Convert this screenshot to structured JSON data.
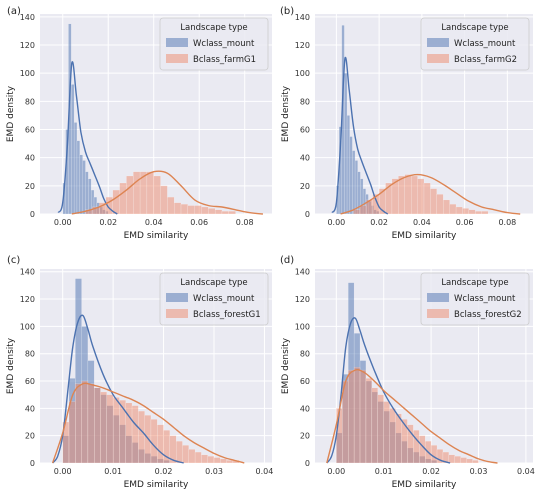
{
  "figure": {
    "panels": [
      "(a)",
      "(b)",
      "(c)",
      "(d)"
    ]
  },
  "colors": {
    "background": "#eaeaf2",
    "grid": "#ffffff",
    "blue_fill": "#4c72b0",
    "orange_fill": "#ee8a6b",
    "blue_line": "#4c72b0",
    "orange_line": "#dd8452"
  },
  "chart_data": [
    {
      "type": "histogram with KDE",
      "panel_label": "(a)",
      "xlabel": "EMD similarity",
      "ylabel": "EMD density",
      "xlim": [
        -0.01,
        0.092
      ],
      "ylim": [
        0,
        142
      ],
      "xticks": [
        0.0,
        0.02,
        0.04,
        0.06,
        0.08
      ],
      "xtick_labels": [
        "0.00",
        "0.02",
        "0.04",
        "0.06",
        "0.08"
      ],
      "yticks": [
        0,
        20,
        40,
        60,
        80,
        100,
        120,
        140
      ],
      "grid": true,
      "legend": {
        "title": "Landscape type",
        "placement": "top-right"
      },
      "series": [
        {
          "name": "Wclass_mount",
          "color": "blue",
          "bin_start": 0.0,
          "bin_width": 0.00125,
          "hist": [
            22,
            60,
            135,
            92,
            65,
            52,
            42,
            38,
            30,
            25,
            17,
            12,
            8,
            5,
            3,
            2
          ],
          "kde_x": [
            -0.002,
            0.0,
            0.002,
            0.004,
            0.006,
            0.008,
            0.01,
            0.012,
            0.014,
            0.016,
            0.018,
            0.02,
            0.022,
            0.024
          ],
          "kde_y": [
            1,
            8,
            48,
            107,
            84,
            58,
            44,
            36,
            28,
            20,
            11,
            5,
            2,
            0
          ]
        },
        {
          "name": "Bclass_farmG1",
          "color": "orange",
          "bin_start": 0.01,
          "bin_width": 0.003,
          "hist": [
            3,
            5,
            8,
            12,
            17,
            22,
            27,
            30,
            30,
            30,
            27,
            20,
            12,
            8,
            7,
            6,
            6,
            5,
            4,
            3,
            2,
            2
          ],
          "kde_x": [
            0.004,
            0.01,
            0.016,
            0.022,
            0.028,
            0.034,
            0.04,
            0.046,
            0.052,
            0.058,
            0.064,
            0.07,
            0.076,
            0.082,
            0.088
          ],
          "kde_y": [
            0,
            2,
            5,
            10,
            17,
            25,
            30,
            29,
            20,
            10,
            6,
            5,
            3,
            1,
            0
          ]
        }
      ]
    },
    {
      "type": "histogram with KDE",
      "panel_label": "(b)",
      "xlabel": "EMD similarity",
      "ylabel": "EMD density",
      "xlim": [
        -0.01,
        0.092
      ],
      "ylim": [
        0,
        142
      ],
      "xticks": [
        0.0,
        0.02,
        0.04,
        0.06,
        0.08
      ],
      "xtick_labels": [
        "0.00",
        "0.02",
        "0.04",
        "0.06",
        "0.08"
      ],
      "yticks": [
        0,
        20,
        40,
        60,
        80,
        100,
        120,
        140
      ],
      "grid": true,
      "legend": {
        "title": "Landscape type",
        "placement": "top-right"
      },
      "series": [
        {
          "name": "Wclass_mount",
          "color": "blue",
          "bin_start": 0.0,
          "bin_width": 0.00125,
          "hist": [
            20,
            62,
            134,
            100,
            70,
            55,
            45,
            38,
            30,
            25,
            18,
            14,
            9,
            6,
            3,
            2
          ],
          "kde_x": [
            -0.002,
            0.0,
            0.002,
            0.004,
            0.006,
            0.008,
            0.01,
            0.012,
            0.014,
            0.016,
            0.018,
            0.02,
            0.022,
            0.024
          ],
          "kde_y": [
            1,
            8,
            50,
            110,
            88,
            62,
            46,
            37,
            29,
            21,
            12,
            5,
            2,
            0
          ]
        },
        {
          "name": "Bclass_farmG2",
          "color": "orange",
          "bin_start": 0.008,
          "bin_width": 0.003,
          "hist": [
            3,
            6,
            10,
            14,
            18,
            22,
            25,
            27,
            28,
            27,
            25,
            22,
            18,
            14,
            10,
            7,
            5,
            4,
            3,
            2,
            2
          ],
          "kde_x": [
            0.002,
            0.008,
            0.014,
            0.02,
            0.026,
            0.032,
            0.038,
            0.044,
            0.05,
            0.056,
            0.062,
            0.068,
            0.074,
            0.08,
            0.086
          ],
          "kde_y": [
            0,
            3,
            8,
            14,
            21,
            26,
            28,
            26,
            21,
            15,
            9,
            5,
            3,
            1,
            0
          ]
        }
      ]
    },
    {
      "type": "histogram with KDE",
      "panel_label": "(c)",
      "xlabel": "EMD similarity",
      "ylabel": "EMD density",
      "xlim": [
        -0.0045,
        0.0415
      ],
      "ylim": [
        0,
        142
      ],
      "xticks": [
        0.0,
        0.01,
        0.02,
        0.03,
        0.04
      ],
      "xtick_labels": [
        "0.00",
        "0.01",
        "0.02",
        "0.03",
        "0.04"
      ],
      "yticks": [
        0,
        20,
        40,
        60,
        80,
        100,
        120,
        140
      ],
      "grid": true,
      "legend": {
        "title": "Landscape type",
        "placement": "top-right"
      },
      "series": [
        {
          "name": "Wclass_mount",
          "color": "blue",
          "bin_start": 0.0,
          "bin_width": 0.00125,
          "hist": [
            20,
            62,
            135,
            100,
            75,
            55,
            50,
            42,
            35,
            28,
            20,
            15,
            10,
            7,
            5,
            3,
            2
          ],
          "kde_x": [
            -0.002,
            -0.001,
            0.0,
            0.001,
            0.002,
            0.003,
            0.004,
            0.005,
            0.006,
            0.008,
            0.01,
            0.012,
            0.014,
            0.016,
            0.018,
            0.02,
            0.022,
            0.024
          ],
          "kde_y": [
            0,
            5,
            20,
            52,
            85,
            103,
            108,
            98,
            85,
            65,
            50,
            40,
            30,
            22,
            13,
            6,
            2,
            0
          ]
        },
        {
          "name": "Bclass_forestG1",
          "color": "orange",
          "bin_start": 0.0,
          "bin_width": 0.00125,
          "hist": [
            30,
            45,
            58,
            60,
            58,
            55,
            52,
            50,
            48,
            46,
            44,
            42,
            38,
            35,
            32,
            28,
            24,
            20,
            16,
            13,
            10,
            8,
            6,
            5,
            4,
            3,
            2,
            2
          ],
          "kde_x": [
            -0.002,
            0.0,
            0.002,
            0.004,
            0.006,
            0.008,
            0.01,
            0.012,
            0.014,
            0.016,
            0.018,
            0.02,
            0.022,
            0.024,
            0.026,
            0.028,
            0.03,
            0.032,
            0.034,
            0.036
          ],
          "kde_y": [
            0,
            22,
            50,
            58,
            57,
            55,
            52,
            49,
            46,
            42,
            37,
            32,
            26,
            20,
            15,
            11,
            7,
            4,
            2,
            0
          ]
        }
      ]
    },
    {
      "type": "histogram with KDE",
      "panel_label": "(d)",
      "xlabel": "EMD similarity",
      "ylabel": "EMD density",
      "xlim": [
        -0.0045,
        0.0415
      ],
      "ylim": [
        0,
        142
      ],
      "xticks": [
        0.0,
        0.01,
        0.02,
        0.03,
        0.04
      ],
      "xtick_labels": [
        "0.00",
        "0.01",
        "0.02",
        "0.03",
        "0.04"
      ],
      "yticks": [
        0,
        20,
        40,
        60,
        80,
        100,
        120,
        140
      ],
      "grid": true,
      "legend": {
        "title": "Landscape type",
        "placement": "top-right"
      },
      "series": [
        {
          "name": "Wclass_mount",
          "color": "blue",
          "bin_start": 0.0,
          "bin_width": 0.00125,
          "hist": [
            22,
            65,
            132,
            95,
            75,
            60,
            52,
            45,
            38,
            30,
            22,
            16,
            11,
            8,
            5,
            3,
            2
          ],
          "kde_x": [
            -0.002,
            -0.001,
            0.0,
            0.001,
            0.002,
            0.003,
            0.004,
            0.005,
            0.006,
            0.008,
            0.01,
            0.012,
            0.014,
            0.016,
            0.018,
            0.02,
            0.022,
            0.024
          ],
          "kde_y": [
            0,
            5,
            20,
            50,
            85,
            102,
            106,
            97,
            86,
            68,
            52,
            40,
            30,
            21,
            13,
            6,
            2,
            0
          ]
        },
        {
          "name": "Bclass_forestG2",
          "color": "orange",
          "bin_start": 0.0,
          "bin_width": 0.00125,
          "hist": [
            40,
            60,
            68,
            70,
            68,
            62,
            55,
            50,
            45,
            40,
            36,
            32,
            28,
            24,
            20,
            16,
            13,
            10,
            8,
            6,
            5,
            4,
            3,
            2
          ],
          "kde_x": [
            -0.002,
            0.0,
            0.002,
            0.004,
            0.006,
            0.008,
            0.01,
            0.012,
            0.014,
            0.016,
            0.018,
            0.02,
            0.022,
            0.024,
            0.026,
            0.028,
            0.03,
            0.032,
            0.034
          ],
          "kde_y": [
            0,
            28,
            60,
            68,
            66,
            60,
            53,
            47,
            41,
            35,
            29,
            23,
            18,
            13,
            9,
            6,
            3,
            1,
            0
          ]
        }
      ]
    }
  ]
}
